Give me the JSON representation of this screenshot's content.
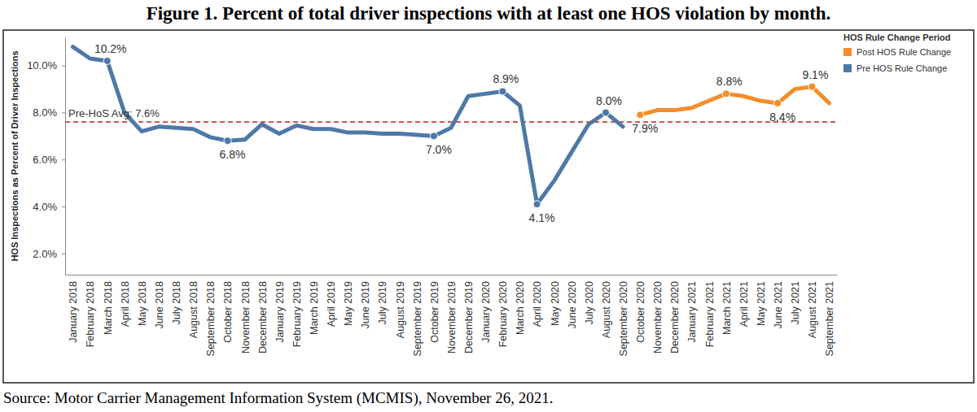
{
  "chart_data": {
    "type": "line",
    "title": "Figure 1. Percent of total driver inspections with at least one HOS violation by month.",
    "source": "Source: Motor Carrier Management Information System (MCMIS), November 26, 2021.",
    "y_label": "HOS Inspections as Percent of Driver Inspections",
    "legend_title": "HOS Rule Change Period",
    "legend": "top-right",
    "grid": false,
    "data_labels": true,
    "categories": [
      "January 2018",
      "February 2018",
      "March 2018",
      "April 2018",
      "May 2018",
      "June 2018",
      "July 2018",
      "August 2018",
      "September 2018",
      "October 2018",
      "November 2018",
      "December 2018",
      "January 2019",
      "February 2019",
      "March 2019",
      "April 2019",
      "May 2019",
      "June 2019",
      "July 2019",
      "August 2019",
      "September 2019",
      "October 2019",
      "November 2019",
      "December 2019",
      "January 2020",
      "February 2020",
      "March 2020",
      "April 2020",
      "May 2020",
      "June 2020",
      "July 2020",
      "August 2020",
      "September 2020",
      "October 2020",
      "November 2020",
      "December 2020",
      "January 2021",
      "February 2021",
      "March 2021",
      "April 2021",
      "May 2021",
      "June 2021",
      "July 2021",
      "August 2021",
      "September 2021"
    ],
    "series": [
      {
        "name": "Post HOS Rule Change",
        "color": "#f28e2b",
        "values": [
          null,
          null,
          null,
          null,
          null,
          null,
          null,
          null,
          null,
          null,
          null,
          null,
          null,
          null,
          null,
          null,
          null,
          null,
          null,
          null,
          null,
          null,
          null,
          null,
          null,
          null,
          null,
          null,
          null,
          null,
          null,
          null,
          null,
          7.9,
          8.1,
          8.1,
          8.2,
          8.5,
          8.8,
          8.7,
          8.5,
          8.4,
          9.0,
          9.1,
          8.4
        ],
        "value_labels": [
          null,
          null,
          null,
          null,
          null,
          null,
          null,
          null,
          null,
          null,
          null,
          null,
          null,
          null,
          null,
          null,
          null,
          null,
          null,
          null,
          null,
          null,
          null,
          null,
          null,
          null,
          null,
          null,
          null,
          null,
          null,
          null,
          null,
          "7.9%",
          null,
          null,
          null,
          null,
          "8.8%",
          null,
          null,
          "8.4%",
          null,
          "9.1%",
          null
        ]
      },
      {
        "name": "Pre HOS Rule Change",
        "color": "#4e79a7",
        "values": [
          10.8,
          10.3,
          10.2,
          8.0,
          7.2,
          7.4,
          7.35,
          7.3,
          6.95,
          6.8,
          6.85,
          7.5,
          7.1,
          7.45,
          7.3,
          7.3,
          7.15,
          7.15,
          7.1,
          7.1,
          7.05,
          7.0,
          7.35,
          8.7,
          8.8,
          8.9,
          8.3,
          4.1,
          5.1,
          6.3,
          7.5,
          8.0,
          7.4,
          null,
          null,
          null,
          null,
          null,
          null,
          null,
          null,
          null,
          null,
          null,
          null
        ],
        "value_labels": [
          null,
          null,
          "10.2%",
          null,
          null,
          null,
          null,
          null,
          null,
          "6.8%",
          null,
          null,
          null,
          null,
          null,
          null,
          null,
          null,
          null,
          null,
          null,
          "7.0%",
          null,
          null,
          null,
          "8.9%",
          null,
          "4.1%",
          null,
          null,
          null,
          "8.0%",
          null,
          null,
          null,
          null,
          null,
          null,
          null,
          null,
          null,
          null,
          null,
          null,
          null
        ]
      }
    ],
    "annotations": [
      {
        "text": "Pre-HoS Avg: 7.6%",
        "y": 7.6
      }
    ],
    "ylim": [
      1.1,
      11.2
    ],
    "yticks": [
      {
        "value": 2,
        "label": "2.0%"
      },
      {
        "value": 4,
        "label": "4.0%"
      },
      {
        "value": 6,
        "label": "6.0%"
      },
      {
        "value": 8,
        "label": "8.0%"
      },
      {
        "value": 10,
        "label": "10.0%"
      }
    ]
  }
}
